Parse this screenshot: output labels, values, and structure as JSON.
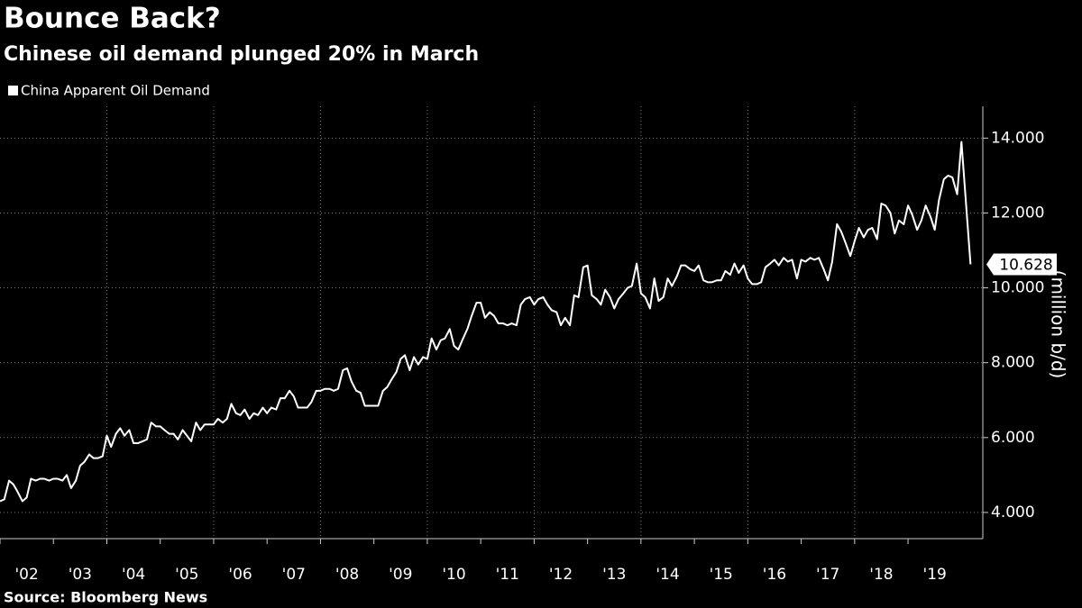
{
  "chart_data": {
    "type": "line",
    "title": "Bounce Back?",
    "subtitle": "Chinese oil demand plunged 20% in March",
    "source": "Source: Bloomberg News",
    "y_axis_label": "(million b/d)",
    "grid": true,
    "xlim": [
      2002,
      2020.4
    ],
    "ylim": [
      3300,
      14850
    ],
    "xticks": [
      {
        "value": 2002,
        "label": "'02"
      },
      {
        "value": 2003,
        "label": "'03"
      },
      {
        "value": 2004,
        "label": "'04"
      },
      {
        "value": 2005,
        "label": "'05"
      },
      {
        "value": 2006,
        "label": "'06"
      },
      {
        "value": 2007,
        "label": "'07"
      },
      {
        "value": 2008,
        "label": "'08"
      },
      {
        "value": 2009,
        "label": "'09"
      },
      {
        "value": 2010,
        "label": "'10"
      },
      {
        "value": 2011,
        "label": "'11"
      },
      {
        "value": 2012,
        "label": "'12"
      },
      {
        "value": 2013,
        "label": "'13"
      },
      {
        "value": 2014,
        "label": "'14"
      },
      {
        "value": 2015,
        "label": "'15"
      },
      {
        "value": 2016,
        "label": "'16"
      },
      {
        "value": 2017,
        "label": "'17"
      },
      {
        "value": 2018,
        "label": "'18"
      },
      {
        "value": 2019,
        "label": "'19"
      }
    ],
    "yticks": [
      {
        "value": 4000,
        "label": "4.000"
      },
      {
        "value": 6000,
        "label": "6.000"
      },
      {
        "value": 8000,
        "label": "8.000"
      },
      {
        "value": 10000,
        "label": "10.000"
      },
      {
        "value": 12000,
        "label": "12.000"
      },
      {
        "value": 14000,
        "label": "14.000"
      }
    ],
    "x": [
      2002,
      2002.08,
      2002.17,
      2002.25,
      2002.33,
      2002.42,
      2002.5,
      2002.58,
      2002.67,
      2002.75,
      2002.83,
      2002.92,
      2003,
      2003.08,
      2003.17,
      2003.25,
      2003.33,
      2003.42,
      2003.5,
      2003.58,
      2003.67,
      2003.75,
      2003.83,
      2003.92,
      2004,
      2004.08,
      2004.17,
      2004.25,
      2004.33,
      2004.42,
      2004.5,
      2004.58,
      2004.67,
      2004.75,
      2004.83,
      2004.92,
      2005,
      2005.08,
      2005.17,
      2005.25,
      2005.33,
      2005.42,
      2005.5,
      2005.58,
      2005.67,
      2005.75,
      2005.83,
      2005.92,
      2006,
      2006.08,
      2006.17,
      2006.25,
      2006.33,
      2006.42,
      2006.5,
      2006.58,
      2006.67,
      2006.75,
      2006.83,
      2006.92,
      2007,
      2007.08,
      2007.17,
      2007.25,
      2007.33,
      2007.42,
      2007.5,
      2007.58,
      2007.67,
      2007.75,
      2007.83,
      2007.92,
      2008,
      2008.08,
      2008.17,
      2008.25,
      2008.33,
      2008.42,
      2008.5,
      2008.58,
      2008.67,
      2008.75,
      2008.83,
      2008.92,
      2009,
      2009.08,
      2009.17,
      2009.25,
      2009.33,
      2009.42,
      2009.5,
      2009.58,
      2009.67,
      2009.75,
      2009.83,
      2009.92,
      2010,
      2010.08,
      2010.17,
      2010.25,
      2010.33,
      2010.42,
      2010.5,
      2010.58,
      2010.67,
      2010.75,
      2010.83,
      2010.92,
      2011,
      2011.08,
      2011.17,
      2011.25,
      2011.33,
      2011.42,
      2011.5,
      2011.58,
      2011.67,
      2011.75,
      2011.83,
      2011.92,
      2012,
      2012.08,
      2012.17,
      2012.25,
      2012.33,
      2012.42,
      2012.5,
      2012.58,
      2012.67,
      2012.75,
      2012.83,
      2012.92,
      2013,
      2013.08,
      2013.17,
      2013.25,
      2013.33,
      2013.42,
      2013.5,
      2013.58,
      2013.67,
      2013.75,
      2013.83,
      2013.92,
      2014,
      2014.08,
      2014.17,
      2014.25,
      2014.33,
      2014.42,
      2014.5,
      2014.58,
      2014.67,
      2014.75,
      2014.83,
      2014.92,
      2015,
      2015.08,
      2015.17,
      2015.25,
      2015.33,
      2015.42,
      2015.5,
      2015.58,
      2015.67,
      2015.75,
      2015.83,
      2015.92,
      2016,
      2016.08,
      2016.17,
      2016.25,
      2016.33,
      2016.42,
      2016.5,
      2016.58,
      2016.67,
      2016.75,
      2016.83,
      2016.92,
      2017,
      2017.08,
      2017.17,
      2017.25,
      2017.33,
      2017.42,
      2017.5,
      2017.58,
      2017.67,
      2017.75,
      2017.83,
      2017.92,
      2018,
      2018.08,
      2018.17,
      2018.25,
      2018.33,
      2018.42,
      2018.5,
      2018.58,
      2018.67,
      2018.75,
      2018.83,
      2018.92,
      2019,
      2019.08,
      2019.17,
      2019.25,
      2019.33,
      2019.42,
      2019.5,
      2019.58,
      2019.67,
      2019.75,
      2019.83,
      2019.92,
      2020,
      2020.17
    ],
    "series": [
      {
        "name": "China Apparent Oil Demand",
        "color": "#ffffff",
        "values": [
          4300,
          4350,
          4850,
          4750,
          4550,
          4300,
          4400,
          4900,
          4850,
          4900,
          4900,
          4850,
          4900,
          4900,
          4850,
          5000,
          4650,
          4850,
          5250,
          5350,
          5550,
          5450,
          5450,
          5500,
          6050,
          5750,
          6100,
          6250,
          6050,
          6200,
          5850,
          5850,
          5900,
          5950,
          6400,
          6300,
          6300,
          6200,
          6100,
          6100,
          5950,
          6200,
          6050,
          5900,
          6400,
          6200,
          6350,
          6350,
          6350,
          6500,
          6400,
          6500,
          6900,
          6650,
          6600,
          6750,
          6500,
          6650,
          6600,
          6800,
          6650,
          6800,
          6750,
          7050,
          7050,
          7250,
          7100,
          6800,
          6800,
          6800,
          6950,
          7250,
          7250,
          7300,
          7300,
          7250,
          7300,
          7800,
          7850,
          7500,
          7250,
          7200,
          6850,
          6850,
          6850,
          6850,
          7250,
          7350,
          7550,
          7750,
          8100,
          8200,
          7800,
          8150,
          7950,
          8150,
          8100,
          8650,
          8350,
          8600,
          8650,
          8900,
          8450,
          8350,
          8650,
          8900,
          9250,
          9600,
          9600,
          9200,
          9350,
          9250,
          9050,
          9050,
          9000,
          9050,
          9000,
          9550,
          9700,
          9750,
          9550,
          9700,
          9750,
          9550,
          9400,
          9350,
          9000,
          9200,
          9000,
          9800,
          9750,
          10550,
          10600,
          9800,
          9700,
          9550,
          9950,
          9750,
          9450,
          9700,
          9850,
          10000,
          10050,
          10650,
          9850,
          9750,
          9450,
          10250,
          9650,
          9750,
          10250,
          10050,
          10300,
          10600,
          10600,
          10500,
          10450,
          10600,
          10200,
          10150,
          10150,
          10200,
          10200,
          10450,
          10350,
          10650,
          10400,
          10600,
          10250,
          10100,
          10100,
          10150,
          10550,
          10650,
          10750,
          10600,
          10800,
          10700,
          10750,
          10250,
          10750,
          10700,
          10800,
          10750,
          10800,
          10500,
          10200,
          10700,
          11700,
          11500,
          11200,
          10850,
          11250,
          11600,
          11350,
          11550,
          11600,
          11300,
          12250,
          12200,
          12000,
          11450,
          11800,
          11700,
          12200,
          11950,
          11550,
          11800,
          12200,
          11900,
          11550,
          12350,
          12900,
          13000,
          12950,
          12500,
          13900,
          10628
        ],
        "value_labels": [
          null,
          null,
          null,
          null,
          null,
          null,
          null,
          null,
          null,
          null,
          null,
          null,
          null,
          null,
          null,
          null,
          null,
          null,
          null,
          null,
          null,
          null,
          null,
          null,
          null,
          null,
          null,
          null,
          null,
          null,
          null,
          null,
          null,
          null,
          null,
          null,
          null,
          null,
          null,
          null,
          null,
          null,
          null,
          null,
          null,
          null,
          null,
          null,
          null,
          null,
          null,
          null,
          null,
          null,
          null,
          null,
          null,
          null,
          null,
          null,
          null,
          null,
          null,
          null,
          null,
          null,
          null,
          null,
          null,
          null,
          null,
          null,
          null,
          null,
          null,
          null,
          null,
          null,
          null,
          null,
          null,
          null,
          null,
          null,
          null,
          null,
          null,
          null,
          null,
          null,
          null,
          null,
          null,
          null,
          null,
          null,
          null,
          null,
          null,
          null,
          null,
          null,
          null,
          null,
          null,
          null,
          null,
          null,
          null,
          null,
          null,
          null,
          null,
          null,
          null,
          null,
          null,
          null,
          null,
          null,
          null,
          null,
          null,
          null,
          null,
          null,
          null,
          null,
          null,
          null,
          null,
          null,
          null,
          null,
          null,
          null,
          null,
          null,
          null,
          null,
          null,
          null,
          null,
          null,
          null,
          null,
          null,
          null,
          null,
          null,
          null,
          null,
          null,
          null,
          null,
          null,
          null,
          null,
          null,
          null,
          null,
          null,
          null,
          null,
          null,
          null,
          null,
          null,
          null,
          null,
          null,
          null,
          null,
          null,
          null,
          null,
          null,
          null,
          null,
          null,
          null,
          null,
          null,
          null,
          null,
          null,
          null,
          null,
          null,
          null,
          null,
          null,
          null,
          null,
          null,
          null,
          null,
          null,
          null,
          null,
          null,
          null,
          null,
          null,
          null,
          null,
          null,
          null,
          null,
          null,
          null,
          null,
          null,
          null,
          null,
          null,
          null,
          "10.628"
        ]
      }
    ]
  }
}
